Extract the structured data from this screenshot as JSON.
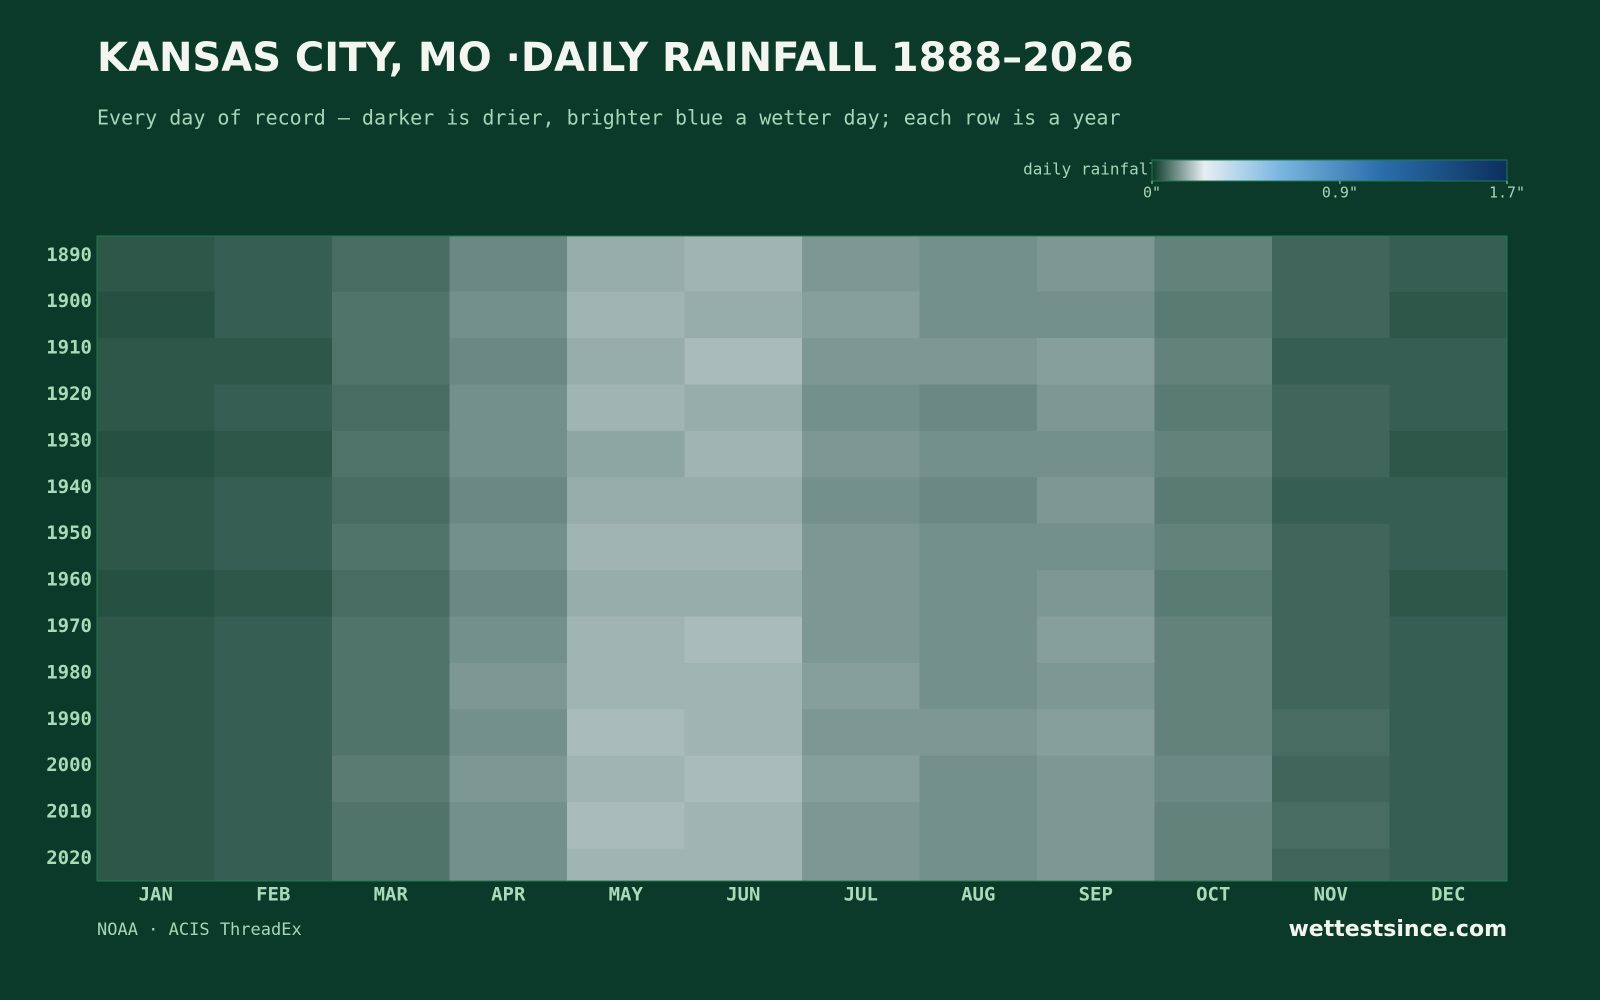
{
  "chart_data": {
    "type": "heatmap",
    "title": "KANSAS CITY, MO ·DAILY RAINFALL 1888–2026",
    "subtitle": "Every day of record — darker is drier, brighter blue a wetter day; each row is a year",
    "colorbar_label": "daily rainfall",
    "colorbar_lim": [
      0,
      1.7
    ],
    "colorbar_ticks": [
      {
        "value": 0,
        "label": "0\""
      },
      {
        "value": 0.9,
        "label": "0.9\""
      },
      {
        "value": 1.7,
        "label": "1.7\""
      }
    ],
    "colorscale": [
      [
        0,
        "#0b3a2a"
      ],
      [
        0.25,
        "#e6eef2"
      ],
      [
        0.6,
        "#7db8e2"
      ],
      [
        1.1,
        "#2a6eaa"
      ],
      [
        1.7,
        "#0c2f5e"
      ]
    ],
    "categories": [
      "JAN",
      "FEB",
      "MAR",
      "APR",
      "MAY",
      "JUN",
      "JUL",
      "AUG",
      "SEP",
      "OCT",
      "NOV",
      "DEC"
    ],
    "y_bins": [
      1888,
      1900,
      1910,
      1920,
      1930,
      1940,
      1950,
      1960,
      1970,
      1980,
      1990,
      2000,
      2010,
      2020,
      2027
    ],
    "ylim": [
      1888,
      2027
    ],
    "yticks": [
      1890,
      1900,
      1910,
      1920,
      1930,
      1940,
      1950,
      1960,
      1970,
      1980,
      1990,
      2000,
      2010,
      2020
    ],
    "values": [
      [
        0.04,
        0.05,
        0.07,
        0.11,
        0.16,
        0.17,
        0.13,
        0.12,
        0.13,
        0.1,
        0.06,
        0.05
      ],
      [
        0.03,
        0.05,
        0.08,
        0.12,
        0.17,
        0.16,
        0.14,
        0.12,
        0.12,
        0.09,
        0.06,
        0.04
      ],
      [
        0.04,
        0.04,
        0.08,
        0.11,
        0.16,
        0.18,
        0.13,
        0.13,
        0.14,
        0.1,
        0.05,
        0.05
      ],
      [
        0.04,
        0.05,
        0.07,
        0.12,
        0.17,
        0.16,
        0.12,
        0.11,
        0.13,
        0.09,
        0.06,
        0.05
      ],
      [
        0.03,
        0.04,
        0.08,
        0.12,
        0.15,
        0.17,
        0.13,
        0.12,
        0.12,
        0.1,
        0.06,
        0.04
      ],
      [
        0.04,
        0.05,
        0.07,
        0.11,
        0.16,
        0.16,
        0.12,
        0.11,
        0.13,
        0.09,
        0.05,
        0.05
      ],
      [
        0.04,
        0.05,
        0.08,
        0.12,
        0.17,
        0.17,
        0.13,
        0.12,
        0.12,
        0.1,
        0.06,
        0.05
      ],
      [
        0.03,
        0.04,
        0.07,
        0.11,
        0.16,
        0.16,
        0.13,
        0.12,
        0.13,
        0.09,
        0.06,
        0.04
      ],
      [
        0.04,
        0.05,
        0.08,
        0.12,
        0.17,
        0.18,
        0.13,
        0.12,
        0.14,
        0.1,
        0.06,
        0.05
      ],
      [
        0.04,
        0.05,
        0.08,
        0.13,
        0.17,
        0.17,
        0.14,
        0.12,
        0.13,
        0.1,
        0.06,
        0.05
      ],
      [
        0.04,
        0.05,
        0.08,
        0.12,
        0.18,
        0.17,
        0.13,
        0.13,
        0.14,
        0.1,
        0.07,
        0.05
      ],
      [
        0.04,
        0.05,
        0.09,
        0.13,
        0.17,
        0.18,
        0.14,
        0.12,
        0.13,
        0.11,
        0.06,
        0.05
      ],
      [
        0.04,
        0.05,
        0.08,
        0.12,
        0.18,
        0.17,
        0.13,
        0.12,
        0.13,
        0.1,
        0.07,
        0.05
      ],
      [
        0.04,
        0.05,
        0.08,
        0.12,
        0.17,
        0.17,
        0.13,
        0.12,
        0.13,
        0.1,
        0.06,
        0.05
      ]
    ],
    "source": "NOAA · ACIS ThreadEx",
    "brand": "wettestsince.com"
  }
}
